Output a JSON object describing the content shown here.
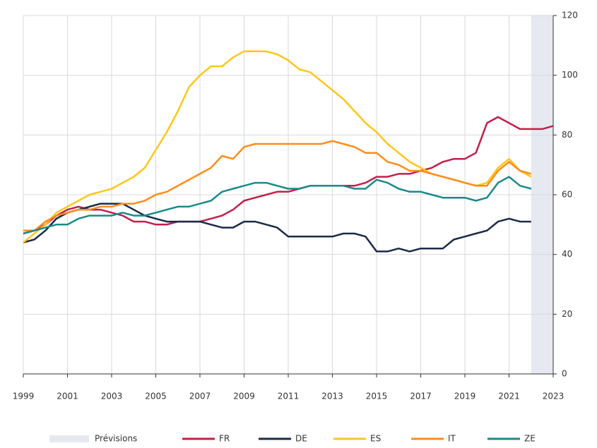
{
  "chart_data": {
    "type": "line",
    "x": [
      1999,
      1999.5,
      2000,
      2000.5,
      2001,
      2001.5,
      2002,
      2002.5,
      2003,
      2003.5,
      2004,
      2004.5,
      2005,
      2005.5,
      2006,
      2006.5,
      2007,
      2007.5,
      2008,
      2008.5,
      2009,
      2009.5,
      2010,
      2010.5,
      2011,
      2011.5,
      2012,
      2012.5,
      2013,
      2013.5,
      2014,
      2014.5,
      2015,
      2015.5,
      2016,
      2016.5,
      2017,
      2017.5,
      2018,
      2018.5,
      2019,
      2019.5,
      2020,
      2020.5,
      2021,
      2021.5,
      2022,
      2022.5,
      2023
    ],
    "series": [
      {
        "name": "FR",
        "color": "#c41e4a",
        "values": [
          47,
          48,
          50,
          53,
          55,
          56,
          55,
          55,
          54,
          53,
          51,
          51,
          50,
          50,
          51,
          51,
          51,
          52,
          53,
          55,
          58,
          59,
          60,
          61,
          61,
          62,
          63,
          63,
          63,
          63,
          63,
          64,
          66,
          66,
          67,
          67,
          68,
          69,
          71,
          72,
          72,
          74,
          84,
          86,
          84,
          82,
          82,
          82,
          83
        ]
      },
      {
        "name": "DE",
        "color": "#1b2a48",
        "values": [
          44,
          45,
          48,
          52,
          54,
          55,
          56,
          57,
          57,
          57,
          55,
          53,
          52,
          51,
          51,
          51,
          51,
          50,
          49,
          49,
          51,
          51,
          50,
          49,
          46,
          46,
          46,
          46,
          46,
          47,
          47,
          46,
          41,
          41,
          42,
          41,
          42,
          42,
          42,
          45,
          46,
          47,
          48,
          51,
          52,
          51,
          51,
          null,
          null
        ]
      },
      {
        "name": "ES",
        "color": "#ffc61a",
        "values": [
          44,
          47,
          50,
          54,
          56,
          58,
          60,
          61,
          62,
          64,
          66,
          69,
          75,
          81,
          88,
          96,
          100,
          103,
          103,
          106,
          108,
          108,
          108,
          107,
          105,
          102,
          101,
          98,
          95,
          92,
          88,
          84,
          81,
          77,
          74,
          71,
          69,
          67,
          66,
          65,
          64,
          63,
          64,
          69,
          72,
          68,
          66,
          null,
          null
        ]
      },
      {
        "name": "IT",
        "color": "#ff8c1a",
        "values": [
          48,
          48,
          51,
          53,
          54,
          55,
          55,
          56,
          56,
          57,
          57,
          58,
          60,
          61,
          63,
          65,
          67,
          69,
          73,
          72,
          76,
          77,
          77,
          77,
          77,
          77,
          77,
          77,
          78,
          77,
          76,
          74,
          74,
          71,
          70,
          68,
          68,
          67,
          66,
          65,
          64,
          63,
          63,
          68,
          71,
          68,
          67,
          null,
          null
        ]
      },
      {
        "name": "ZE",
        "color": "#1a8a8a",
        "values": [
          47,
          48,
          49,
          50,
          50,
          52,
          53,
          53,
          53,
          54,
          53,
          53,
          54,
          55,
          56,
          56,
          57,
          58,
          61,
          62,
          63,
          64,
          64,
          63,
          62,
          62,
          63,
          63,
          63,
          63,
          62,
          62,
          65,
          64,
          62,
          61,
          61,
          60,
          59,
          59,
          59,
          58,
          59,
          64,
          66,
          63,
          62,
          null,
          null
        ]
      }
    ],
    "shaded_region": {
      "name": "Prévisions",
      "start": 2022,
      "end": 2023,
      "color": "#e6e9f0"
    },
    "xlim": [
      1999,
      2023
    ],
    "xticks": [
      1999,
      2001,
      2003,
      2005,
      2007,
      2009,
      2011,
      2013,
      2015,
      2017,
      2019,
      2021,
      2023
    ],
    "ylim": [
      0,
      120
    ],
    "yticks": [
      0,
      20,
      40,
      60,
      80,
      100,
      120
    ],
    "y_axis_side": "right",
    "grid": true
  }
}
